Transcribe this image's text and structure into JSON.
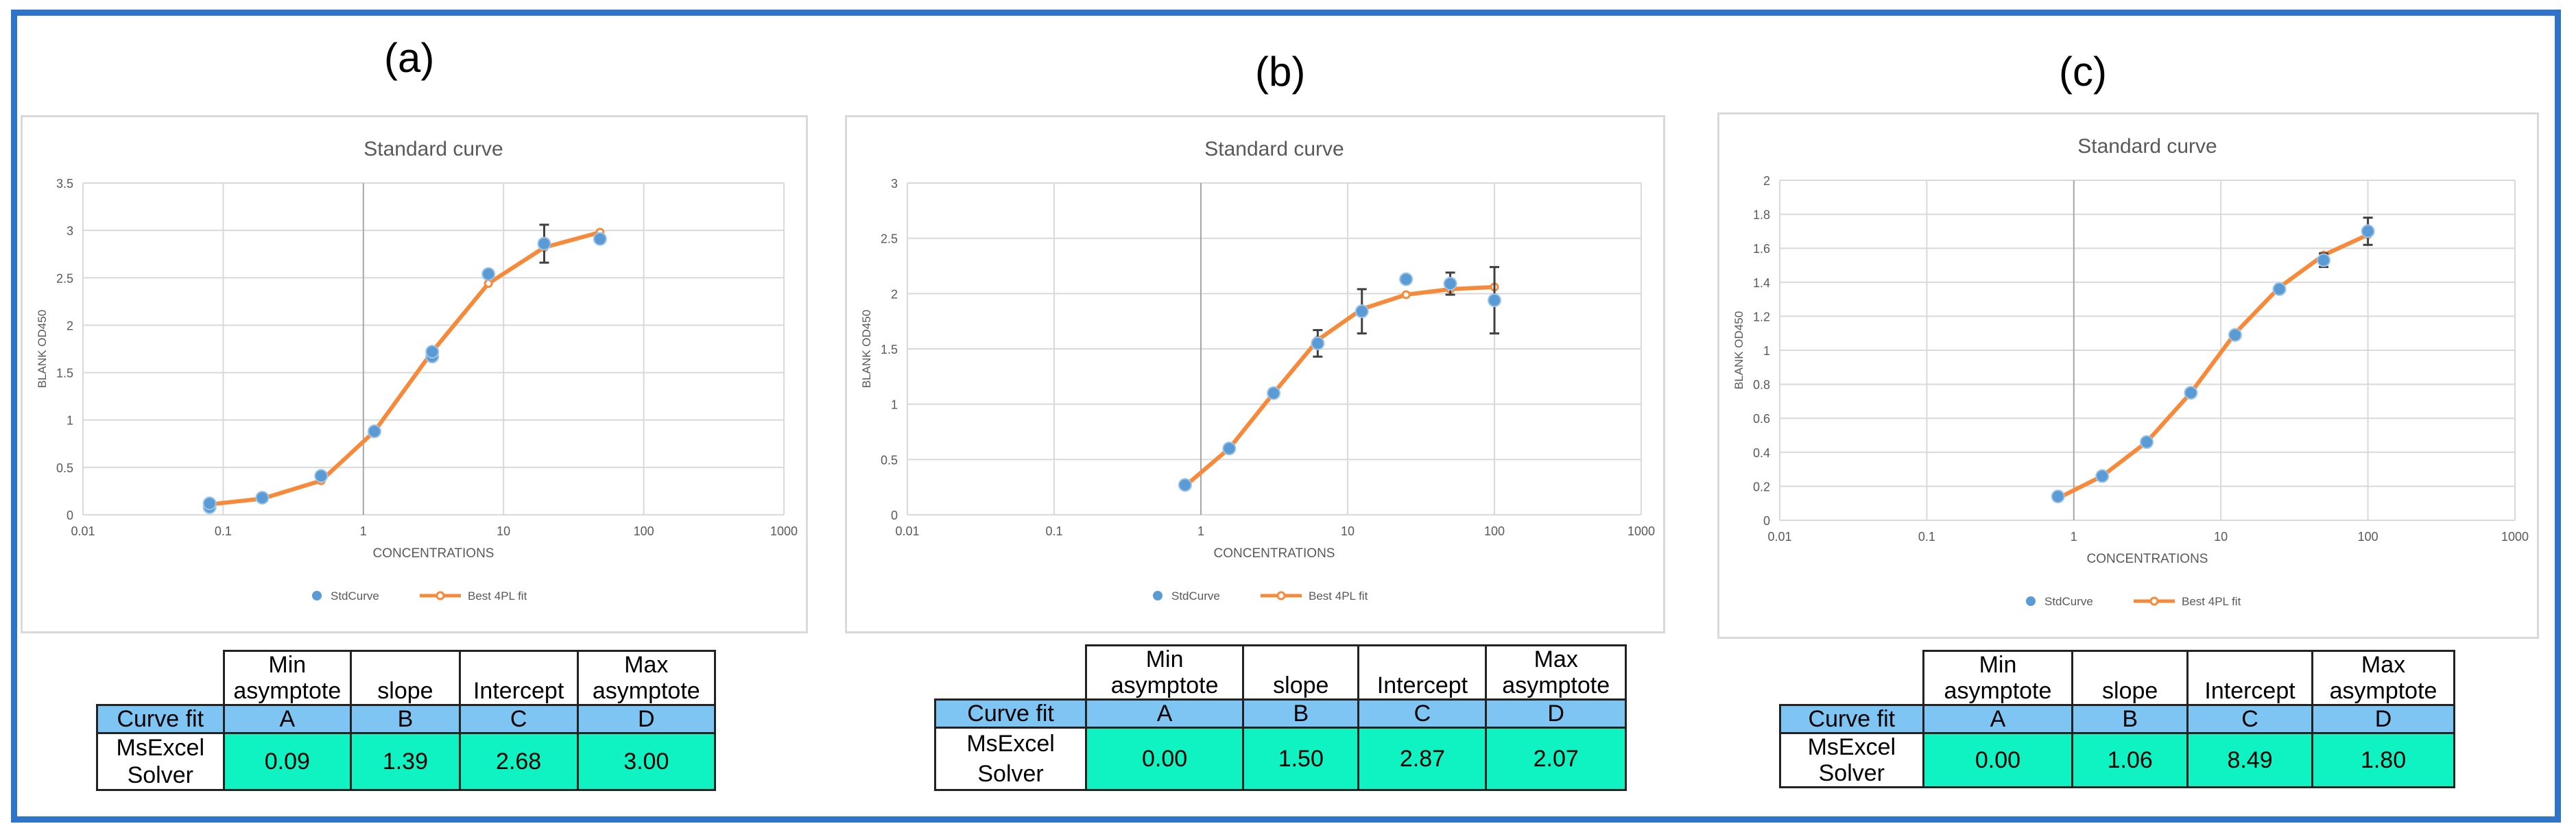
{
  "panels": [
    {
      "label": "(a)",
      "chart_data": {
        "type": "scatter",
        "title": "Standard curve",
        "xlabel": "CONCENTRATIONS",
        "ylabel": "BLANK OD450",
        "xscale": "log",
        "xlim": [
          0.01,
          1000
        ],
        "ylim": [
          0,
          3.5
        ],
        "xticks": [
          "0.01",
          "0.1",
          "1",
          "10",
          "100",
          "1000"
        ],
        "yticks": [
          "0",
          "0.5",
          "1",
          "1.5",
          "2",
          "2.5",
          "3",
          "3.5"
        ],
        "grid": true,
        "legend": "bottom",
        "series": [
          {
            "name": "StdCurve",
            "kind": "points",
            "color": "#5b9bd5",
            "x": [
              0.08,
              0.08,
              0.19,
              0.5,
              1.2,
              3.1,
              3.1,
              7.8,
              19.5,
              48.8
            ],
            "y": [
              0.08,
              0.12,
              0.18,
              0.41,
              0.88,
              1.67,
              1.72,
              2.54,
              2.86,
              2.91
            ],
            "err": [
              0,
              0,
              0,
              0,
              0,
              0,
              0,
              0,
              0.2,
              0
            ]
          },
          {
            "name": "Best 4PL fit",
            "kind": "line",
            "color": "#f7893b",
            "x": [
              0.08,
              0.19,
              0.5,
              1.2,
              3.1,
              7.8,
              19.5,
              48.8
            ],
            "y": [
              0.11,
              0.17,
              0.36,
              0.88,
              1.72,
              2.44,
              2.82,
              2.98
            ]
          }
        ]
      },
      "table": {
        "h1": "Min asymptote",
        "h2": "slope",
        "h3": "Intercept",
        "h4": "Max asymptote",
        "fit": "Curve fit",
        "a": "A",
        "b": "B",
        "c": "C",
        "d": "D",
        "solver": "MsExcel Solver",
        "va": "0.09",
        "vb": "1.39",
        "vc": "2.68",
        "vd": "3.00"
      }
    },
    {
      "label": "(b)",
      "chart_data": {
        "type": "scatter",
        "title": "Standard curve",
        "xlabel": "CONCENTRATIONS",
        "ylabel": "BLANK OD450",
        "xscale": "log",
        "xlim": [
          0.01,
          1000
        ],
        "ylim": [
          0,
          3
        ],
        "xticks": [
          "0.01",
          "0.1",
          "1",
          "10",
          "100",
          "1000"
        ],
        "yticks": [
          "0",
          "0.5",
          "1",
          "1.5",
          "2",
          "2.5",
          "3"
        ],
        "grid": true,
        "legend": "bottom",
        "series": [
          {
            "name": "StdCurve",
            "kind": "points",
            "color": "#5b9bd5",
            "x": [
              0.78,
              1.56,
              3.13,
              6.25,
              12.5,
              25,
              50,
              100
            ],
            "y": [
              0.27,
              0.6,
              1.1,
              1.55,
              1.84,
              2.13,
              2.09,
              1.94
            ],
            "err": [
              0.03,
              0,
              0,
              0.12,
              0.2,
              0,
              0.1,
              0.3
            ]
          },
          {
            "name": "Best 4PL fit",
            "kind": "line",
            "color": "#f7893b",
            "x": [
              0.78,
              1.56,
              3.13,
              6.25,
              12.5,
              25,
              50,
              100
            ],
            "y": [
              0.26,
              0.6,
              1.1,
              1.58,
              1.86,
              1.99,
              2.04,
              2.06
            ]
          }
        ]
      },
      "table": {
        "h1": "Min asymptote",
        "h2": "slope",
        "h3": "Intercept",
        "h4": "Max asymptote",
        "fit": "Curve fit",
        "a": "A",
        "b": "B",
        "c": "C",
        "d": "D",
        "solver": "MsExcel Solver",
        "va": "0.00",
        "vb": "1.50",
        "vc": "2.87",
        "vd": "2.07"
      }
    },
    {
      "label": "(c)",
      "chart_data": {
        "type": "scatter",
        "title": "Standard curve",
        "xlabel": "CONCENTRATIONS",
        "ylabel": "BLANK OD450",
        "xscale": "log",
        "xlim": [
          0.01,
          1000
        ],
        "ylim": [
          0,
          2
        ],
        "xticks": [
          "0.01",
          "0.1",
          "1",
          "10",
          "100",
          "1000"
        ],
        "yticks": [
          "0",
          "0.2",
          "0.4",
          "0.6",
          "0.8",
          "1",
          "1.2",
          "1.4",
          "1.6",
          "1.8",
          "2"
        ],
        "grid": true,
        "legend": "bottom",
        "series": [
          {
            "name": "StdCurve",
            "kind": "points",
            "color": "#5b9bd5",
            "x": [
              0.78,
              1.56,
              3.13,
              6.25,
              12.5,
              25,
              50,
              100
            ],
            "y": [
              0.14,
              0.26,
              0.46,
              0.75,
              1.09,
              1.36,
              1.53,
              1.7
            ],
            "err": [
              0,
              0,
              0,
              0,
              0,
              0,
              0.04,
              0.08
            ]
          },
          {
            "name": "Best 4PL fit",
            "kind": "line",
            "color": "#f7893b",
            "x": [
              0.78,
              1.56,
              3.13,
              6.25,
              12.5,
              25,
              50,
              100
            ],
            "y": [
              0.13,
              0.26,
              0.46,
              0.75,
              1.1,
              1.37,
              1.56,
              1.68
            ]
          }
        ]
      },
      "table": {
        "h1": "Min asymptote",
        "h2": "slope",
        "h3": "Intercept",
        "h4": "Max asymptote",
        "fit": "Curve fit",
        "a": "A",
        "b": "B",
        "c": "C",
        "d": "D",
        "solver": "MsExcel Solver",
        "va": "0.00",
        "vb": "1.06",
        "vc": "8.49",
        "vd": "1.80"
      }
    }
  ]
}
